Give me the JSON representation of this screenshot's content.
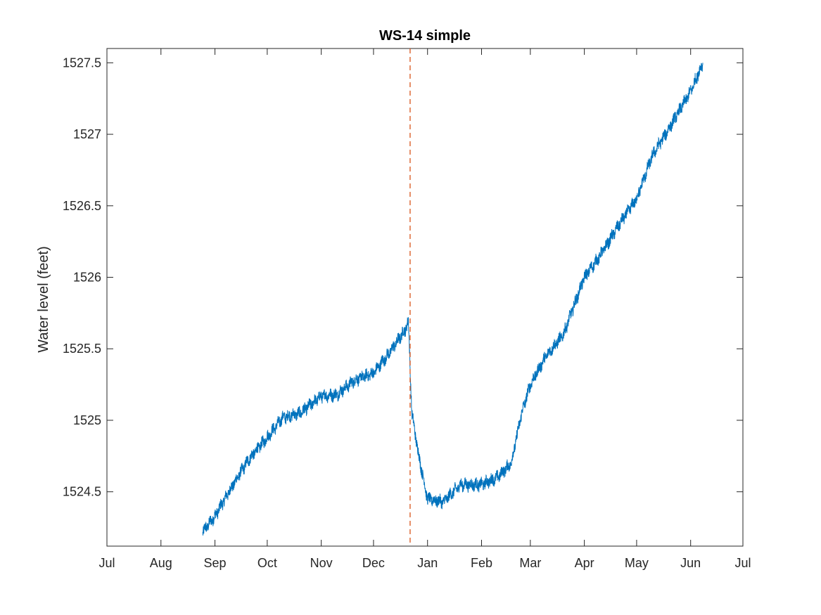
{
  "chart_data": {
    "type": "line",
    "title": "WS-14 simple",
    "xlabel": "",
    "ylabel": "Water level (feet)",
    "x_ticks": [
      "Jul",
      "Aug",
      "Sep",
      "Oct",
      "Nov",
      "Dec",
      "Jan",
      "Feb",
      "Mar",
      "Apr",
      "May",
      "Jun",
      "Jul"
    ],
    "x_tick_dates": [
      "2020-07-01",
      "2020-08-01",
      "2020-09-01",
      "2020-10-01",
      "2020-11-01",
      "2020-12-01",
      "2021-01-01",
      "2021-02-01",
      "2021-03-01",
      "2021-04-01",
      "2021-05-01",
      "2021-06-01",
      "2021-07-01"
    ],
    "xlim": [
      "2020-07-01",
      "2021-07-01"
    ],
    "y_ticks": [
      1524.5,
      1525,
      1525.5,
      1526,
      1526.5,
      1527,
      1527.5
    ],
    "y_tick_labels": [
      "1524.5",
      "1525",
      "1525.5",
      "1526",
      "1526.5",
      "1527",
      "1527.5"
    ],
    "ylim": [
      1524.12,
      1527.6
    ],
    "grid": false,
    "series": [
      {
        "color": "#0072BD",
        "noise": 0.04,
        "x": [
          "2020-08-25",
          "2020-09-01",
          "2020-09-10",
          "2020-09-20",
          "2020-10-01",
          "2020-10-10",
          "2020-10-20",
          "2020-11-01",
          "2020-11-10",
          "2020-11-20",
          "2020-12-01",
          "2020-12-10",
          "2020-12-19",
          "2020-12-21",
          "2020-12-23",
          "2020-12-27",
          "2021-01-01",
          "2021-01-10",
          "2021-01-20",
          "2021-02-01",
          "2021-02-10",
          "2021-02-18",
          "2021-02-24",
          "2021-03-01",
          "2021-03-10",
          "2021-03-20",
          "2021-04-01",
          "2021-04-10",
          "2021-04-20",
          "2021-05-01",
          "2021-05-10",
          "2021-05-20",
          "2021-06-01",
          "2021-06-08"
        ],
        "y": [
          1524.22,
          1524.33,
          1524.52,
          1524.72,
          1524.88,
          1525.02,
          1525.05,
          1525.17,
          1525.18,
          1525.28,
          1525.33,
          1525.47,
          1525.63,
          1525.69,
          1525.05,
          1524.75,
          1524.45,
          1524.43,
          1524.55,
          1524.55,
          1524.6,
          1524.7,
          1525.05,
          1525.25,
          1525.45,
          1525.6,
          1526.0,
          1526.15,
          1526.35,
          1526.55,
          1526.85,
          1527.05,
          1527.3,
          1527.5
        ]
      }
    ],
    "reference_line": {
      "x": "2020-12-22",
      "color": "#D95319",
      "style": "dashed"
    }
  }
}
